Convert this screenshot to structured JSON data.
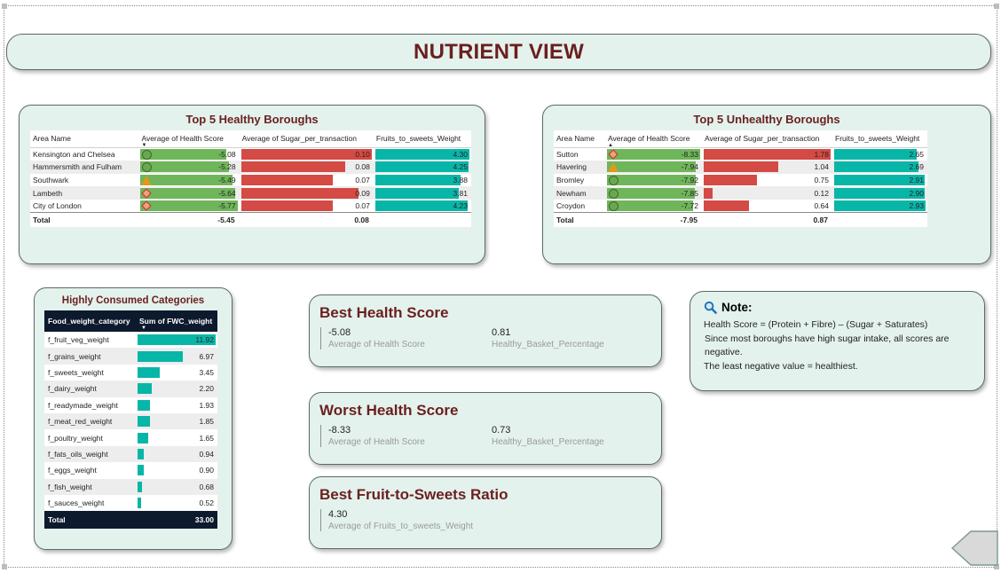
{
  "page": {
    "title": "NUTRIENT VIEW"
  },
  "healthy": {
    "title": "Top 5 Healthy Boroughs",
    "columns": [
      "Area Name",
      "Average of Health Score",
      "Average of Sugar_per_transaction",
      "Fruits_to_sweets_Weight"
    ],
    "rows": [
      {
        "area": "Kensington and Chelsea",
        "health": "-5.08",
        "health_num": -5.08,
        "icon": "circle-icon",
        "sugar": "0.10",
        "sugar_num": 0.1,
        "fruit": "4.30",
        "fruit_num": 4.3
      },
      {
        "area": "Hammersmith and Fulham",
        "health": "-5.28",
        "health_num": -5.28,
        "icon": "circle-icon",
        "sugar": "0.08",
        "sugar_num": 0.08,
        "fruit": "4.25",
        "fruit_num": 4.25
      },
      {
        "area": "Southwark",
        "health": "-5.49",
        "health_num": -5.49,
        "icon": "triangle-icon",
        "sugar": "0.07",
        "sugar_num": 0.07,
        "fruit": "3.88",
        "fruit_num": 3.88
      },
      {
        "area": "Lambeth",
        "health": "-5.64",
        "health_num": -5.64,
        "icon": "diamond-icon",
        "sugar": "0.09",
        "sugar_num": 0.09,
        "fruit": "3.81",
        "fruit_num": 3.81
      },
      {
        "area": "City of London",
        "health": "-5.77",
        "health_num": -5.77,
        "icon": "diamond-icon",
        "sugar": "0.07",
        "sugar_num": 0.07,
        "fruit": "4.23",
        "fruit_num": 4.23
      }
    ],
    "total": {
      "label": "Total",
      "health": "-5.45",
      "sugar": "0.08"
    }
  },
  "unhealthy": {
    "title": "Top 5 Unhealthy Boroughs",
    "columns": [
      "Area Name",
      "Average of Health Score",
      "Average of Sugar_per_transaction",
      "Fruits_to_sweets_Weight"
    ],
    "rows": [
      {
        "area": "Sutton",
        "health": "-8.33",
        "health_num": -8.33,
        "icon": "diamond-icon",
        "sugar": "1.78",
        "sugar_num": 1.78,
        "fruit": "2.65",
        "fruit_num": 2.65
      },
      {
        "area": "Havering",
        "health": "-7.94",
        "health_num": -7.94,
        "icon": "triangle-icon",
        "sugar": "1.04",
        "sugar_num": 1.04,
        "fruit": "2.69",
        "fruit_num": 2.69
      },
      {
        "area": "Bromley",
        "health": "-7.92",
        "health_num": -7.92,
        "icon": "circle-icon",
        "sugar": "0.75",
        "sugar_num": 0.75,
        "fruit": "2.91",
        "fruit_num": 2.91
      },
      {
        "area": "Newham",
        "health": "-7.85",
        "health_num": -7.85,
        "icon": "circle-icon",
        "sugar": "0.12",
        "sugar_num": 0.12,
        "fruit": "2.90",
        "fruit_num": 2.9
      },
      {
        "area": "Croydon",
        "health": "-7.72",
        "health_num": -7.72,
        "icon": "circle-icon",
        "sugar": "0.64",
        "sugar_num": 0.64,
        "fruit": "2.93",
        "fruit_num": 2.93
      }
    ],
    "total": {
      "label": "Total",
      "health": "-7.95",
      "sugar": "0.87"
    }
  },
  "categories": {
    "title": "Highly Consumed Categories",
    "columns": [
      "Food_weight_category",
      "Sum of FWC_weight"
    ],
    "rows": [
      {
        "name": "f_fruit_veg_weight",
        "value": "11.92",
        "value_num": 11.92
      },
      {
        "name": "f_grains_weight",
        "value": "6.97",
        "value_num": 6.97
      },
      {
        "name": "f_sweets_weight",
        "value": "3.45",
        "value_num": 3.45
      },
      {
        "name": "f_dairy_weight",
        "value": "2.20",
        "value_num": 2.2
      },
      {
        "name": "f_readymade_weight",
        "value": "1.93",
        "value_num": 1.93
      },
      {
        "name": "f_meat_red_weight",
        "value": "1.85",
        "value_num": 1.85
      },
      {
        "name": "f_poultry_weight",
        "value": "1.65",
        "value_num": 1.65
      },
      {
        "name": "f_fats_oils_weight",
        "value": "0.94",
        "value_num": 0.94
      },
      {
        "name": "f_eggs_weight",
        "value": "0.90",
        "value_num": 0.9
      },
      {
        "name": "f_fish_weight",
        "value": "0.68",
        "value_num": 0.68
      },
      {
        "name": "f_sauces_weight",
        "value": "0.52",
        "value_num": 0.52
      }
    ],
    "total": {
      "label": "Total",
      "value": "33.00"
    }
  },
  "kpis": {
    "best": {
      "title": "Best Health Score",
      "v1": "-5.08",
      "l1": "Average of Health Score",
      "v2": "0.81",
      "l2": "Healthy_Basket_Percentage"
    },
    "worst": {
      "title": "Worst Health Score",
      "v1": "-8.33",
      "l1": "Average of Health Score",
      "v2": "0.73",
      "l2": "Healthy_Basket_Percentage"
    },
    "fruit": {
      "title": "Best Fruit-to-Sweets Ratio",
      "v1": "4.30",
      "l1": "Average of Fruits_to_sweets_Weight"
    }
  },
  "note": {
    "icon": "magnifier-icon",
    "heading": "Note:",
    "line1": "Health Score = (Protein + Fibre) – (Sugar + Saturates)",
    "line2_pre": "Since most boroughs have ",
    "line2_hl": "high sugar intake",
    "line2_post": ", all scores are negative.",
    "line3_pre": "The ",
    "line3_hl": "least negative",
    "line3_post": " value = healthiest."
  },
  "colors": {
    "accent": "#6b1f1f",
    "card_bg": "#e3f2ec",
    "green": "#6fb55a",
    "red": "#d44a44",
    "teal": "#08b6a8",
    "navy": "#0d1a2e"
  }
}
